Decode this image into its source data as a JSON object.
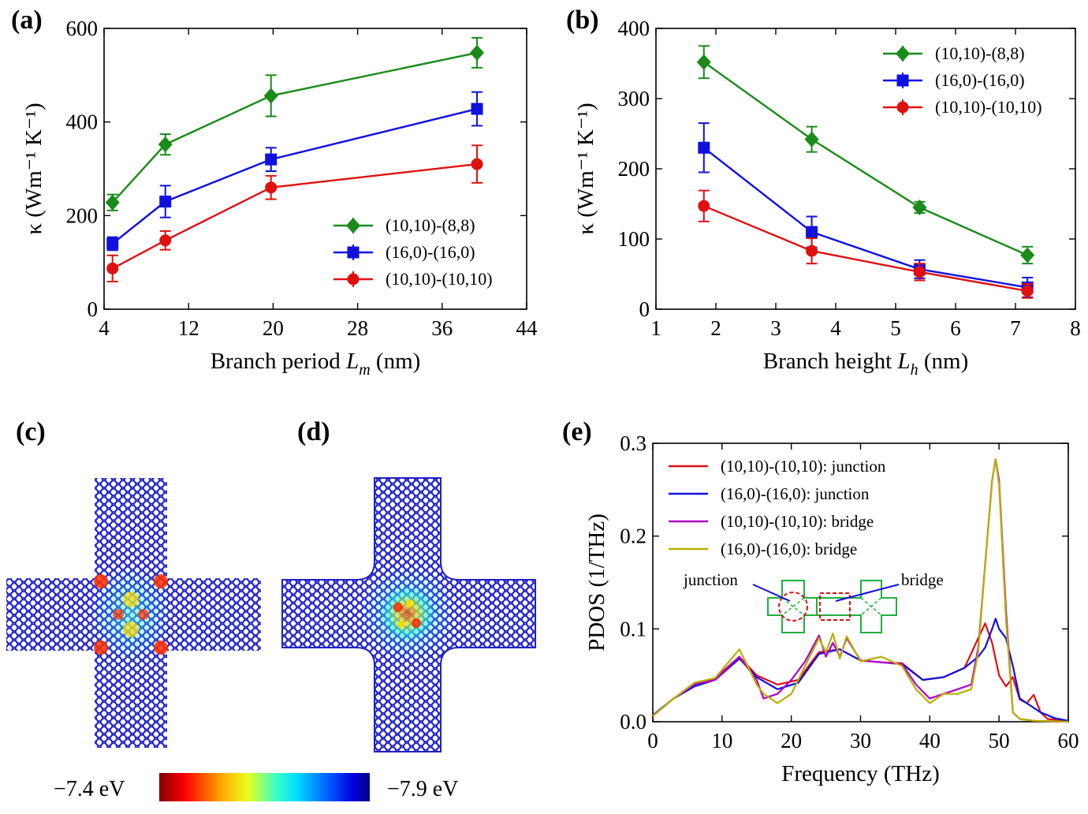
{
  "panels": {
    "a_label": "(a)",
    "b_label": "(b)",
    "c_label": "(c)",
    "d_label": "(d)",
    "e_label": "(e)"
  },
  "colors": {
    "green": "#1a8a1a",
    "blue": "#1010e0",
    "red": "#e01010",
    "magenta": "#b000c8",
    "olive": "#b8b000",
    "structure": "#2020c8",
    "inset": "#20b040"
  },
  "colorbar": {
    "left_label": "−7.4 eV",
    "right_label": "−7.9 eV"
  },
  "inset": {
    "junction_label": "junction",
    "bridge_label": "bridge"
  },
  "chart_data": [
    {
      "type": "line",
      "panel": "a",
      "xlabel": "Branch period L_m (nm)",
      "xlabel_main": "Branch period ",
      "xlabel_sym": "L",
      "xlabel_sub": "m",
      "xlabel_unit": " (nm)",
      "ylabel": "κ (Wm⁻¹ K⁻¹)",
      "xlim": [
        4,
        44
      ],
      "ylim": [
        0,
        600
      ],
      "xticks": [
        4,
        12,
        20,
        28,
        36,
        44
      ],
      "yticks": [
        0,
        200,
        400,
        600
      ],
      "legend_position": "bottom-right",
      "series": [
        {
          "name": "(10,10)-(8,8)",
          "marker": "diamond",
          "color": "#1a8a1a",
          "x": [
            4.8,
            9.8,
            19.8,
            39.3
          ],
          "y": [
            228,
            352,
            456,
            548
          ],
          "err": [
            17,
            22,
            44,
            32
          ]
        },
        {
          "name": "(16,0)-(16,0)",
          "marker": "square",
          "color": "#1010e0",
          "x": [
            4.8,
            9.8,
            19.8,
            39.3
          ],
          "y": [
            140,
            230,
            320,
            428
          ],
          "err": [
            14,
            34,
            25,
            36
          ]
        },
        {
          "name": "(10,10)-(10,10)",
          "marker": "circle",
          "color": "#e01010",
          "x": [
            4.8,
            9.8,
            19.8,
            39.3
          ],
          "y": [
            87,
            147,
            260,
            310
          ],
          "err": [
            28,
            20,
            25,
            40
          ]
        }
      ]
    },
    {
      "type": "line",
      "panel": "b",
      "xlabel": "Branch height L_h (nm)",
      "xlabel_main": "Branch height ",
      "xlabel_sym": "L",
      "xlabel_sub": "h",
      "xlabel_unit": " (nm)",
      "ylabel": "κ (Wm⁻¹ K⁻¹)",
      "xlim": [
        1,
        8
      ],
      "ylim": [
        0,
        400
      ],
      "xticks": [
        1,
        2,
        3,
        4,
        5,
        6,
        7,
        8
      ],
      "yticks": [
        0,
        100,
        200,
        300,
        400
      ],
      "legend_position": "top-right",
      "series": [
        {
          "name": "(10,10)-(8,8)",
          "marker": "diamond",
          "color": "#1a8a1a",
          "x": [
            1.8,
            3.6,
            5.4,
            7.2
          ],
          "y": [
            352,
            242,
            145,
            77
          ],
          "err": [
            23,
            18,
            8,
            12
          ]
        },
        {
          "name": "(16,0)-(16,0)",
          "marker": "square",
          "color": "#1010e0",
          "x": [
            1.8,
            3.6,
            5.4,
            7.2
          ],
          "y": [
            230,
            110,
            57,
            31
          ],
          "err": [
            35,
            22,
            13,
            14
          ]
        },
        {
          "name": "(10,10)-(10,10)",
          "marker": "circle",
          "color": "#e01010",
          "x": [
            1.8,
            3.6,
            5.4,
            7.2
          ],
          "y": [
            147,
            83,
            53,
            26
          ],
          "err": [
            22,
            18,
            12,
            10
          ]
        }
      ]
    },
    {
      "type": "line",
      "panel": "e",
      "xlabel": "Frequency (THz)",
      "ylabel": "PDOS (1/THz)",
      "xlim": [
        0,
        60
      ],
      "ylim": [
        0,
        0.3
      ],
      "xticks": [
        0,
        10,
        20,
        30,
        40,
        50,
        60
      ],
      "yticks": [
        "0.0",
        "0.1",
        "0.2",
        "0.3"
      ],
      "legend_position": "top-left",
      "series": [
        {
          "name": "(10,10)-(10,10): junction",
          "color": "#e01010",
          "x": [
            0,
            3,
            6,
            9,
            12.5,
            15,
            18,
            21,
            24,
            27,
            30,
            33,
            36,
            39,
            42,
            45,
            47,
            48,
            49,
            50,
            51,
            52,
            53,
            54,
            55,
            56,
            57,
            60
          ],
          "y": [
            0.007,
            0.025,
            0.04,
            0.047,
            0.07,
            0.05,
            0.04,
            0.045,
            0.075,
            0.078,
            0.066,
            0.064,
            0.063,
            0.045,
            0.048,
            0.058,
            0.09,
            0.106,
            0.085,
            0.05,
            0.038,
            0.048,
            0.024,
            0.02,
            0.029,
            0.01,
            0.003,
            0.001
          ]
        },
        {
          "name": "(16,0)-(16,0): junction",
          "color": "#1010e0",
          "x": [
            0,
            3,
            6,
            9,
            12.5,
            15,
            18,
            21,
            24,
            27,
            30,
            33,
            36,
            39,
            42,
            45,
            47,
            48,
            49,
            49.5,
            50,
            51,
            52,
            53,
            54,
            56,
            58,
            60
          ],
          "y": [
            0.007,
            0.025,
            0.038,
            0.045,
            0.068,
            0.048,
            0.035,
            0.042,
            0.073,
            0.078,
            0.066,
            0.064,
            0.062,
            0.045,
            0.048,
            0.058,
            0.07,
            0.08,
            0.1,
            0.111,
            0.1,
            0.09,
            0.06,
            0.025,
            0.02,
            0.01,
            0.004,
            0.001
          ]
        },
        {
          "name": "(10,10)-(10,10): bridge",
          "color": "#b000c8",
          "x": [
            0,
            3,
            6,
            9,
            12.5,
            15,
            16,
            18,
            20,
            22,
            24,
            25,
            26,
            27,
            28,
            30,
            33,
            36,
            38,
            40,
            42,
            44,
            46,
            47,
            48,
            49,
            49.5,
            50,
            51,
            52,
            53,
            55,
            60
          ],
          "y": [
            0.006,
            0.025,
            0.04,
            0.045,
            0.07,
            0.045,
            0.025,
            0.03,
            0.045,
            0.065,
            0.093,
            0.07,
            0.085,
            0.07,
            0.09,
            0.066,
            0.064,
            0.062,
            0.04,
            0.025,
            0.03,
            0.035,
            0.04,
            0.08,
            0.17,
            0.26,
            0.283,
            0.26,
            0.12,
            0.01,
            0.003,
            0.001,
            0.0
          ]
        },
        {
          "name": "(16,0)-(16,0): bridge",
          "color": "#b8b000",
          "x": [
            0,
            3,
            6,
            9,
            12.5,
            15,
            16,
            18,
            20,
            22,
            24,
            25,
            26,
            27,
            28,
            30,
            33,
            36,
            38,
            40,
            42,
            44,
            46,
            47,
            48,
            49,
            49.5,
            50,
            51,
            52,
            53,
            55,
            60
          ],
          "y": [
            0.006,
            0.025,
            0.042,
            0.047,
            0.078,
            0.04,
            0.03,
            0.02,
            0.03,
            0.06,
            0.09,
            0.075,
            0.095,
            0.068,
            0.092,
            0.065,
            0.07,
            0.06,
            0.035,
            0.02,
            0.03,
            0.03,
            0.035,
            0.075,
            0.17,
            0.26,
            0.283,
            0.255,
            0.11,
            0.01,
            0.003,
            0.001,
            0.0
          ]
        }
      ]
    }
  ]
}
